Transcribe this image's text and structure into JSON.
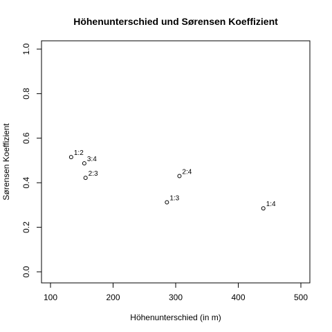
{
  "chart_data": {
    "type": "scatter",
    "title": "Höhenunterschied und Sørensen Koeffizient",
    "xlabel": "Höhenunterschied (in m)",
    "ylabel": "Sørensen Koeffizient",
    "xlim": [
      100,
      500
    ],
    "ylim": [
      0,
      1
    ],
    "xticks": [
      100,
      200,
      300,
      400,
      500
    ],
    "yticks": [
      0.0,
      0.2,
      0.4,
      0.6,
      0.8,
      1.0
    ],
    "xtick_labels": [
      "100",
      "200",
      "300",
      "400",
      "500"
    ],
    "ytick_labels": [
      "0.0",
      "0.2",
      "0.4",
      "0.6",
      "0.8",
      "1.0"
    ],
    "grid": false,
    "points": [
      {
        "label": "1:2",
        "x": 133,
        "y": 0.515
      },
      {
        "label": "3:4",
        "x": 154,
        "y": 0.487
      },
      {
        "label": "2:3",
        "x": 156,
        "y": 0.422
      },
      {
        "label": "2:4",
        "x": 306,
        "y": 0.43
      },
      {
        "label": "1:3",
        "x": 286,
        "y": 0.312
      },
      {
        "label": "1:4",
        "x": 440,
        "y": 0.285
      }
    ]
  }
}
